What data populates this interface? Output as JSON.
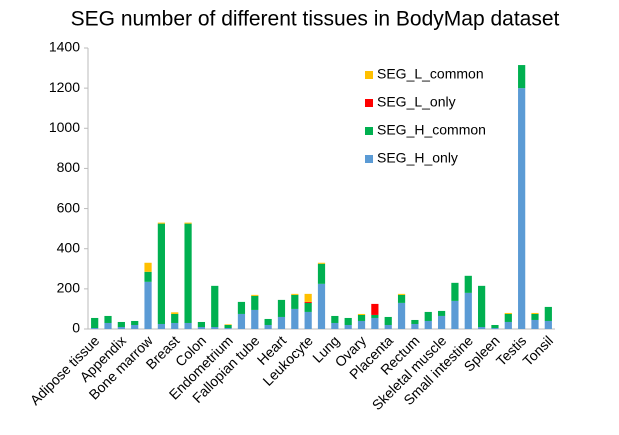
{
  "chart_data": {
    "type": "stacked_bar",
    "title": "SEG number of different tissues in BodyMap dataset",
    "categories": [
      "Adipose tissue",
      null,
      "Appendix",
      null,
      "Bone marrow",
      null,
      "Breast",
      null,
      "Colon",
      null,
      "Endometrium",
      null,
      "Fallopian tube",
      null,
      "Heart",
      null,
      "Leukocyte",
      null,
      "Lung",
      null,
      "Ovary",
      null,
      "Placenta",
      null,
      "Rectum",
      null,
      "Skeletal muscle",
      null,
      "Small intestine",
      null,
      "Spleen",
      null,
      "Testis",
      null,
      "Tonsil"
    ],
    "series": [
      {
        "name": "SEG_H_only",
        "color": "#5b9bd5",
        "values": [
          5,
          30,
          10,
          20,
          235,
          25,
          30,
          30,
          10,
          10,
          5,
          75,
          95,
          20,
          60,
          100,
          85,
          225,
          30,
          20,
          40,
          55,
          20,
          130,
          25,
          40,
          65,
          140,
          180,
          10,
          5,
          35,
          1200,
          45,
          40
        ]
      },
      {
        "name": "SEG_H_common",
        "color": "#00b050",
        "values": [
          50,
          35,
          25,
          20,
          50,
          500,
          45,
          495,
          25,
          205,
          15,
          60,
          70,
          30,
          85,
          70,
          45,
          100,
          35,
          35,
          30,
          15,
          40,
          40,
          20,
          45,
          25,
          90,
          85,
          205,
          15,
          40,
          115,
          30,
          70
        ]
      },
      {
        "name": "SEG_L_only",
        "color": "#ff0000",
        "values": [
          0,
          0,
          0,
          0,
          0,
          0,
          0,
          0,
          0,
          0,
          0,
          0,
          0,
          0,
          0,
          0,
          5,
          0,
          0,
          0,
          0,
          55,
          0,
          0,
          0,
          0,
          0,
          0,
          0,
          0,
          0,
          0,
          0,
          0,
          0
        ]
      },
      {
        "name": "SEG_L_common",
        "color": "#ffc000",
        "values": [
          0,
          0,
          0,
          0,
          45,
          5,
          8,
          5,
          0,
          0,
          3,
          0,
          5,
          0,
          0,
          5,
          40,
          5,
          0,
          0,
          5,
          0,
          0,
          5,
          0,
          0,
          0,
          0,
          0,
          0,
          0,
          5,
          0,
          5,
          0
        ]
      }
    ],
    "ylim": [
      0,
      1400
    ],
    "yticks": [
      0,
      200,
      400,
      600,
      800,
      1000,
      1200,
      1400
    ]
  }
}
